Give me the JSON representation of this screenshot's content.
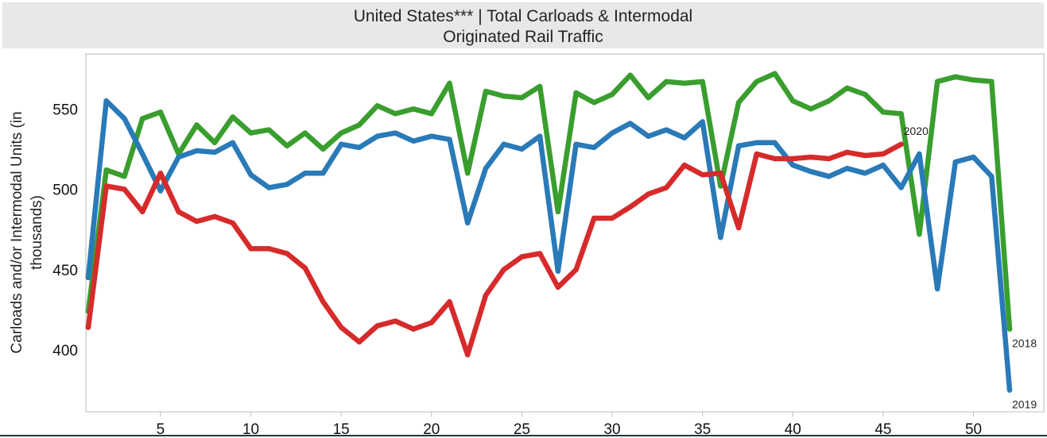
{
  "header": {
    "title_line1": "United States*** | Total Carloads & Intermodal",
    "title_line2": "Originated Rail Traffic"
  },
  "chart_data": {
    "type": "line",
    "title": "United States*** | Total Carloads & Intermodal Originated Rail Traffic",
    "xlabel": "",
    "ylabel": "Carloads and/or Intermodal Units (in thousands)",
    "ylabel_lines": [
      "Carloads and/or Intermodal Units (in",
      "thousands)"
    ],
    "xlim": [
      1,
      52
    ],
    "ylim": [
      367,
      580
    ],
    "x_ticks": [
      5,
      10,
      15,
      20,
      25,
      30,
      35,
      40,
      45,
      50
    ],
    "y_ticks": [
      400,
      450,
      500,
      550
    ],
    "grid": false,
    "series": [
      {
        "name": "2018",
        "color": "#3a9e2f",
        "x": [
          1,
          2,
          3,
          4,
          5,
          6,
          7,
          8,
          9,
          10,
          11,
          12,
          13,
          14,
          15,
          16,
          17,
          18,
          19,
          20,
          21,
          22,
          23,
          24,
          25,
          26,
          27,
          28,
          29,
          30,
          31,
          32,
          33,
          34,
          35,
          36,
          37,
          38,
          39,
          40,
          41,
          42,
          43,
          44,
          45,
          46,
          47,
          48,
          49,
          50,
          51,
          52
        ],
        "values": [
          424,
          512,
          508,
          544,
          548,
          522,
          540,
          529,
          545,
          535,
          537,
          527,
          535,
          525,
          535,
          540,
          552,
          547,
          550,
          547,
          566,
          510,
          561,
          558,
          557,
          564,
          486,
          560,
          554,
          559,
          571,
          557,
          567,
          566,
          567,
          502,
          554,
          567,
          572,
          555,
          550,
          555,
          563,
          559,
          548,
          547,
          472,
          567,
          570,
          568,
          567,
          413
        ]
      },
      {
        "name": "2019",
        "color": "#2a7ab8",
        "x": [
          1,
          2,
          3,
          4,
          5,
          6,
          7,
          8,
          9,
          10,
          11,
          12,
          13,
          14,
          15,
          16,
          17,
          18,
          19,
          20,
          21,
          22,
          23,
          24,
          25,
          26,
          27,
          28,
          29,
          30,
          31,
          32,
          33,
          34,
          35,
          36,
          37,
          38,
          39,
          40,
          41,
          42,
          43,
          44,
          45,
          46,
          47,
          48,
          49,
          50,
          51,
          52
        ],
        "values": [
          445,
          555,
          544,
          522,
          499,
          520,
          524,
          523,
          529,
          509,
          501,
          503,
          510,
          510,
          528,
          526,
          533,
          535,
          530,
          533,
          531,
          479,
          513,
          528,
          525,
          533,
          449,
          528,
          526,
          535,
          541,
          533,
          537,
          532,
          542,
          470,
          527,
          529,
          529,
          515,
          511,
          508,
          513,
          510,
          515,
          501,
          522,
          438,
          517,
          520,
          508,
          375
        ]
      },
      {
        "name": "2020",
        "color": "#d62b2b",
        "x": [
          1,
          2,
          3,
          4,
          5,
          6,
          7,
          8,
          9,
          10,
          11,
          12,
          13,
          14,
          15,
          16,
          17,
          18,
          19,
          20,
          21,
          22,
          23,
          24,
          25,
          26,
          27,
          28,
          29,
          30,
          31,
          32,
          33,
          34,
          35,
          36,
          37,
          38,
          39,
          40,
          41,
          42,
          43,
          44,
          45,
          46
        ],
        "values": [
          414,
          502,
          500,
          486,
          510,
          486,
          480,
          483,
          479,
          463,
          463,
          460,
          451,
          430,
          414,
          405,
          415,
          418,
          413,
          417,
          430,
          397,
          434,
          450,
          458,
          460,
          439,
          450,
          482,
          482,
          489,
          497,
          501,
          515,
          509,
          510,
          476,
          522,
          519,
          519,
          520,
          519,
          523,
          521,
          522,
          528
        ]
      }
    ]
  }
}
